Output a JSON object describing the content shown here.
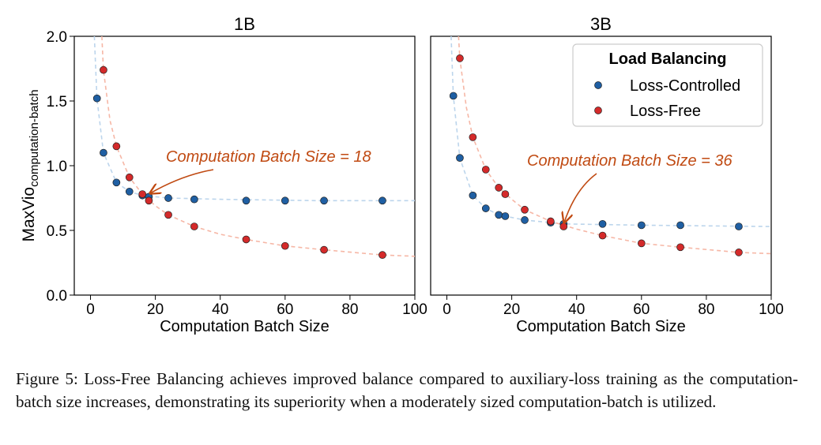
{
  "figure": {
    "ylabel_main": "MaxVio",
    "ylabel_sub": "computation-batch",
    "legend": {
      "title": "Load Balancing",
      "entries": [
        "Loss-Controlled",
        "Loss-Free"
      ]
    }
  },
  "chart_data": [
    {
      "type": "scatter",
      "title": "1B",
      "xlabel": "Computation Batch Size",
      "ylabel": "MaxVio computation-batch",
      "xlim": [
        -5,
        100
      ],
      "ylim": [
        0,
        2.0
      ],
      "xticks": [
        "0",
        "20",
        "40",
        "60",
        "80",
        "100"
      ],
      "yticks": [
        "0.0",
        "0.5",
        "1.0",
        "1.5",
        "2.0"
      ],
      "annotation": {
        "text": "Computation Batch Size = 18",
        "x": 18,
        "y": 0.77
      },
      "series": [
        {
          "name": "Loss-Controlled",
          "color": "#1f5fa3",
          "x": [
            2,
            4,
            8,
            12,
            16,
            18,
            24,
            32,
            48,
            60,
            72,
            90
          ],
          "y": [
            1.52,
            1.1,
            0.87,
            0.8,
            0.77,
            0.76,
            0.75,
            0.74,
            0.73,
            0.73,
            0.73,
            0.73
          ],
          "fit": [
            [
              1.2,
              2.0
            ],
            [
              2,
              1.52
            ],
            [
              4,
              1.1
            ],
            [
              8,
              0.87
            ],
            [
              12,
              0.8
            ],
            [
              16,
              0.77
            ],
            [
              24,
              0.75
            ],
            [
              40,
              0.74
            ],
            [
              70,
              0.73
            ],
            [
              100,
              0.73
            ]
          ]
        },
        {
          "name": "Loss-Free",
          "color": "#d42a2a",
          "x": [
            4,
            8,
            12,
            16,
            18,
            24,
            32,
            48,
            60,
            72,
            90
          ],
          "y": [
            1.74,
            1.15,
            0.91,
            0.78,
            0.73,
            0.62,
            0.53,
            0.43,
            0.38,
            0.35,
            0.31
          ],
          "fit": [
            [
              3.5,
              2.0
            ],
            [
              4,
              1.74
            ],
            [
              6,
              1.35
            ],
            [
              8,
              1.15
            ],
            [
              12,
              0.91
            ],
            [
              16,
              0.78
            ],
            [
              20,
              0.69
            ],
            [
              24,
              0.62
            ],
            [
              32,
              0.53
            ],
            [
              40,
              0.47
            ],
            [
              48,
              0.43
            ],
            [
              60,
              0.38
            ],
            [
              72,
              0.35
            ],
            [
              90,
              0.31
            ],
            [
              100,
              0.3
            ]
          ]
        }
      ]
    },
    {
      "type": "scatter",
      "title": "3B",
      "xlabel": "Computation Batch Size",
      "ylabel": "",
      "xlim": [
        -5,
        100
      ],
      "ylim": [
        0,
        2.0
      ],
      "xticks": [
        "0",
        "20",
        "40",
        "60",
        "80",
        "100"
      ],
      "yticks": [],
      "annotation": {
        "text": "Computation Batch Size = 36",
        "x": 36,
        "y": 0.56
      },
      "series": [
        {
          "name": "Loss-Controlled",
          "color": "#1f5fa3",
          "x": [
            2,
            4,
            8,
            12,
            16,
            18,
            24,
            32,
            36,
            48,
            60,
            72,
            90
          ],
          "y": [
            1.54,
            1.06,
            0.77,
            0.67,
            0.62,
            0.61,
            0.58,
            0.56,
            0.55,
            0.55,
            0.54,
            0.54,
            0.53
          ],
          "fit": [
            [
              1.3,
              2.0
            ],
            [
              2,
              1.54
            ],
            [
              4,
              1.06
            ],
            [
              8,
              0.77
            ],
            [
              12,
              0.67
            ],
            [
              16,
              0.62
            ],
            [
              24,
              0.58
            ],
            [
              36,
              0.55
            ],
            [
              60,
              0.54
            ],
            [
              100,
              0.53
            ]
          ]
        },
        {
          "name": "Loss-Free",
          "color": "#d42a2a",
          "x": [
            4,
            8,
            12,
            16,
            18,
            24,
            32,
            36,
            48,
            60,
            72,
            90
          ],
          "y": [
            1.83,
            1.22,
            0.97,
            0.83,
            0.78,
            0.66,
            0.57,
            0.53,
            0.46,
            0.4,
            0.37,
            0.33
          ],
          "fit": [
            [
              3.6,
              2.0
            ],
            [
              4,
              1.83
            ],
            [
              6,
              1.45
            ],
            [
              8,
              1.22
            ],
            [
              12,
              0.97
            ],
            [
              16,
              0.83
            ],
            [
              20,
              0.74
            ],
            [
              24,
              0.66
            ],
            [
              32,
              0.57
            ],
            [
              40,
              0.51
            ],
            [
              48,
              0.46
            ],
            [
              60,
              0.4
            ],
            [
              72,
              0.37
            ],
            [
              90,
              0.33
            ],
            [
              100,
              0.32
            ]
          ]
        }
      ]
    }
  ],
  "caption": "Figure 5:  Loss-Free Balancing achieves improved balance compared to auxiliary-loss training as the computation-batch size increases, demonstrating its superiority when a moderately sized computation-batch is utilized."
}
